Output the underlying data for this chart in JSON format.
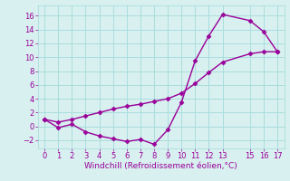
{
  "xlabel": "Windchill (Refroidissement éolien,°C)",
  "line1_x": [
    0,
    1,
    2,
    3,
    4,
    5,
    6,
    7,
    8,
    9,
    10,
    11,
    12,
    13,
    15,
    16,
    17
  ],
  "line1_y": [
    1.0,
    -0.2,
    0.3,
    -0.8,
    -1.4,
    -1.8,
    -2.2,
    -1.9,
    -2.6,
    -0.5,
    3.5,
    9.5,
    13.1,
    16.2,
    15.3,
    13.7,
    10.8
  ],
  "line2_x": [
    0,
    1,
    2,
    3,
    4,
    5,
    6,
    7,
    8,
    9,
    10,
    11,
    12,
    13,
    15,
    16,
    17
  ],
  "line2_y": [
    1.0,
    0.6,
    1.0,
    1.5,
    2.0,
    2.5,
    2.9,
    3.2,
    3.6,
    4.0,
    4.8,
    6.2,
    7.8,
    9.3,
    10.5,
    10.8,
    10.8
  ],
  "line_color": "#990099",
  "bg_color": "#d8f0f0",
  "grid_color": "#aadddd",
  "xlim": [
    -0.5,
    17.5
  ],
  "ylim": [
    -3.2,
    17.5
  ],
  "xticks": [
    0,
    1,
    2,
    3,
    4,
    5,
    6,
    7,
    8,
    9,
    10,
    11,
    12,
    13,
    15,
    16,
    17
  ],
  "yticks": [
    -2,
    0,
    2,
    4,
    6,
    8,
    10,
    12,
    14,
    16
  ],
  "marker": "D",
  "markersize": 2.5,
  "linewidth": 1.0,
  "xlabel_fontsize": 6.5,
  "tick_fontsize": 6.0
}
